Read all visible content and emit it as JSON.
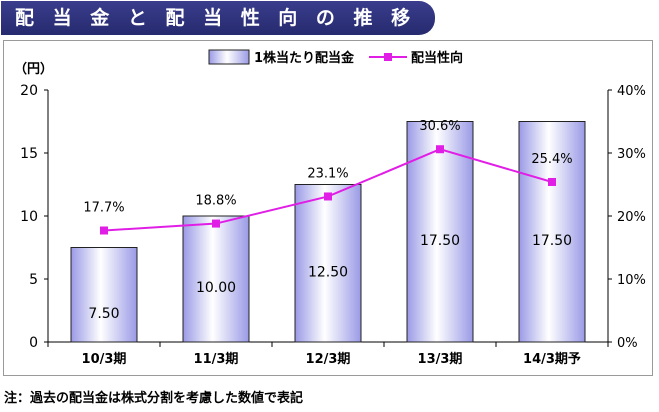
{
  "title": "配 当 金 と 配 当 性 向 の 推 移",
  "note": "注：過去の配当金は株式分割を考慮した数値で表記",
  "colors": {
    "banner": "#2e3180",
    "bar_fill": "#b8b8f0",
    "bar_highlight": "#ffffff",
    "bar_stroke": "#222222",
    "line": "#e11ee6"
  },
  "chart_data": {
    "type": "bar+line",
    "categories": [
      "10/3期",
      "11/3期",
      "12/3期",
      "13/3期",
      "14/3期予"
    ],
    "series": [
      {
        "name": "1株当たり配当金",
        "type": "bar",
        "axis": "left",
        "values": [
          7.5,
          10.0,
          12.5,
          17.5,
          17.5
        ],
        "labels": [
          "7.50",
          "10.00",
          "12.50",
          "17.50",
          "17.50"
        ]
      },
      {
        "name": "配当性向",
        "type": "line",
        "axis": "right",
        "values": [
          17.7,
          18.8,
          23.1,
          30.6,
          25.4
        ],
        "labels": [
          "17.7%",
          "18.8%",
          "23.1%",
          "30.6%",
          "25.4%"
        ]
      }
    ],
    "ylabel": "（円）",
    "ylim": [
      0,
      20
    ],
    "yticks": [
      0,
      5,
      10,
      15,
      20
    ],
    "y2lim": [
      0,
      40
    ],
    "y2ticks": [
      "0%",
      "10%",
      "20%",
      "30%",
      "40%"
    ],
    "legend_position": "top-center",
    "grid": false
  }
}
